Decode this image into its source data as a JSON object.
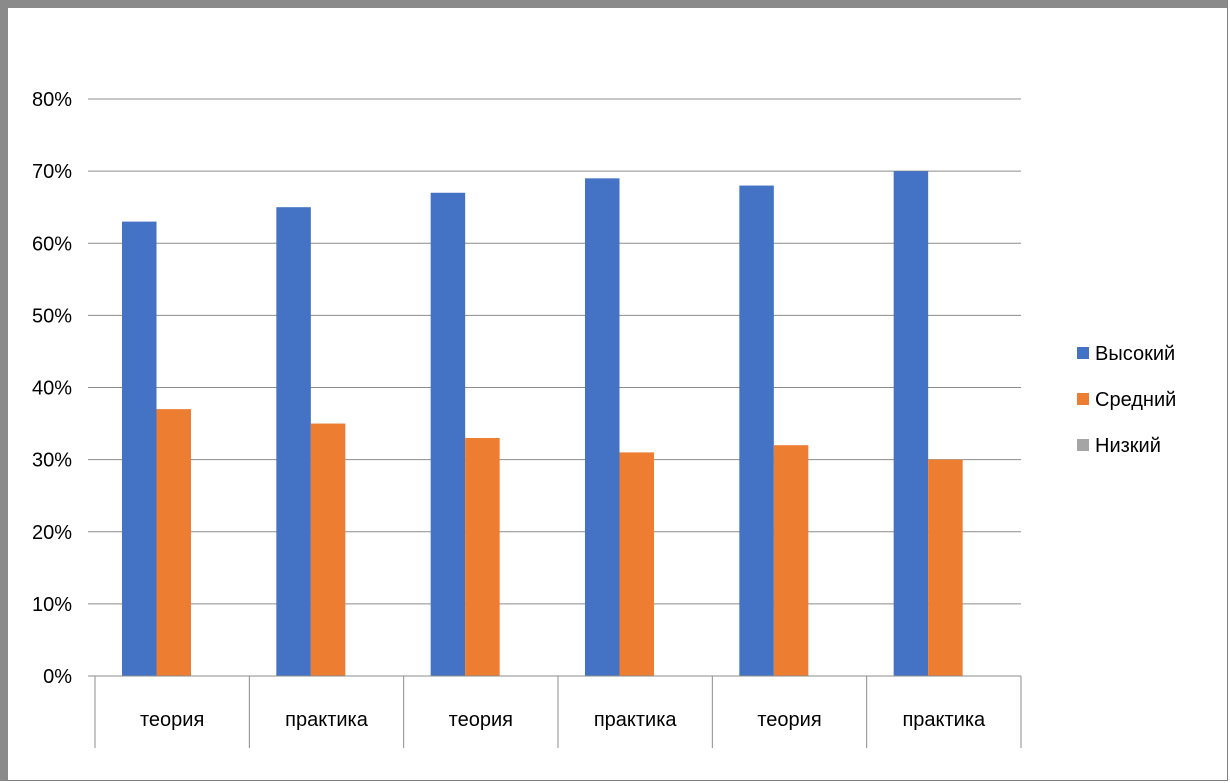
{
  "chart_data": {
    "type": "bar",
    "categories": [
      "теория",
      "практика",
      "теория",
      "практика",
      "теория",
      "практика"
    ],
    "series": [
      {
        "name": "Высокий",
        "color": "#4472C4",
        "values": [
          63,
          65,
          67,
          69,
          68,
          70
        ]
      },
      {
        "name": "Средний",
        "color": "#ED7D31",
        "values": [
          37,
          35,
          33,
          31,
          32,
          30
        ]
      },
      {
        "name": "Низкий",
        "color": "#A5A5A5",
        "values": [
          0,
          0,
          0,
          0,
          0,
          0
        ]
      }
    ],
    "ylim": [
      0,
      80
    ],
    "yticks": [
      "0%",
      "10%",
      "20%",
      "30%",
      "40%",
      "50%",
      "60%",
      "70%",
      "80%"
    ],
    "grid": true,
    "legend": "right"
  }
}
